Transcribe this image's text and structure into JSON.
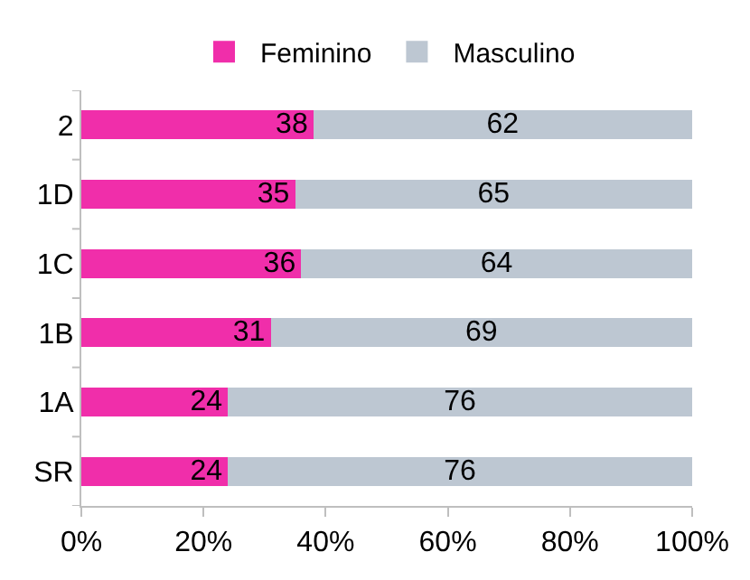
{
  "chart_data": {
    "type": "bar",
    "orientation": "horizontal",
    "stacked": true,
    "data_labels": true,
    "legend": "top",
    "categories": [
      "2",
      "1D",
      "1C",
      "1B",
      "1A",
      "SR"
    ],
    "series": [
      {
        "name": "Feminino",
        "color": "#f02eaa",
        "values": [
          38,
          35,
          36,
          31,
          24,
          24
        ]
      },
      {
        "name": "Masculino",
        "color": "#bdc7d2",
        "values": [
          62,
          65,
          64,
          69,
          76,
          76
        ]
      }
    ],
    "xlim": [
      0,
      100
    ],
    "xticks": [
      {
        "value": 0,
        "label": "0%"
      },
      {
        "value": 20,
        "label": "20%"
      },
      {
        "value": 40,
        "label": "40%"
      },
      {
        "value": 60,
        "label": "60%"
      },
      {
        "value": 80,
        "label": "80%"
      },
      {
        "value": 100,
        "label": "100%"
      }
    ]
  }
}
